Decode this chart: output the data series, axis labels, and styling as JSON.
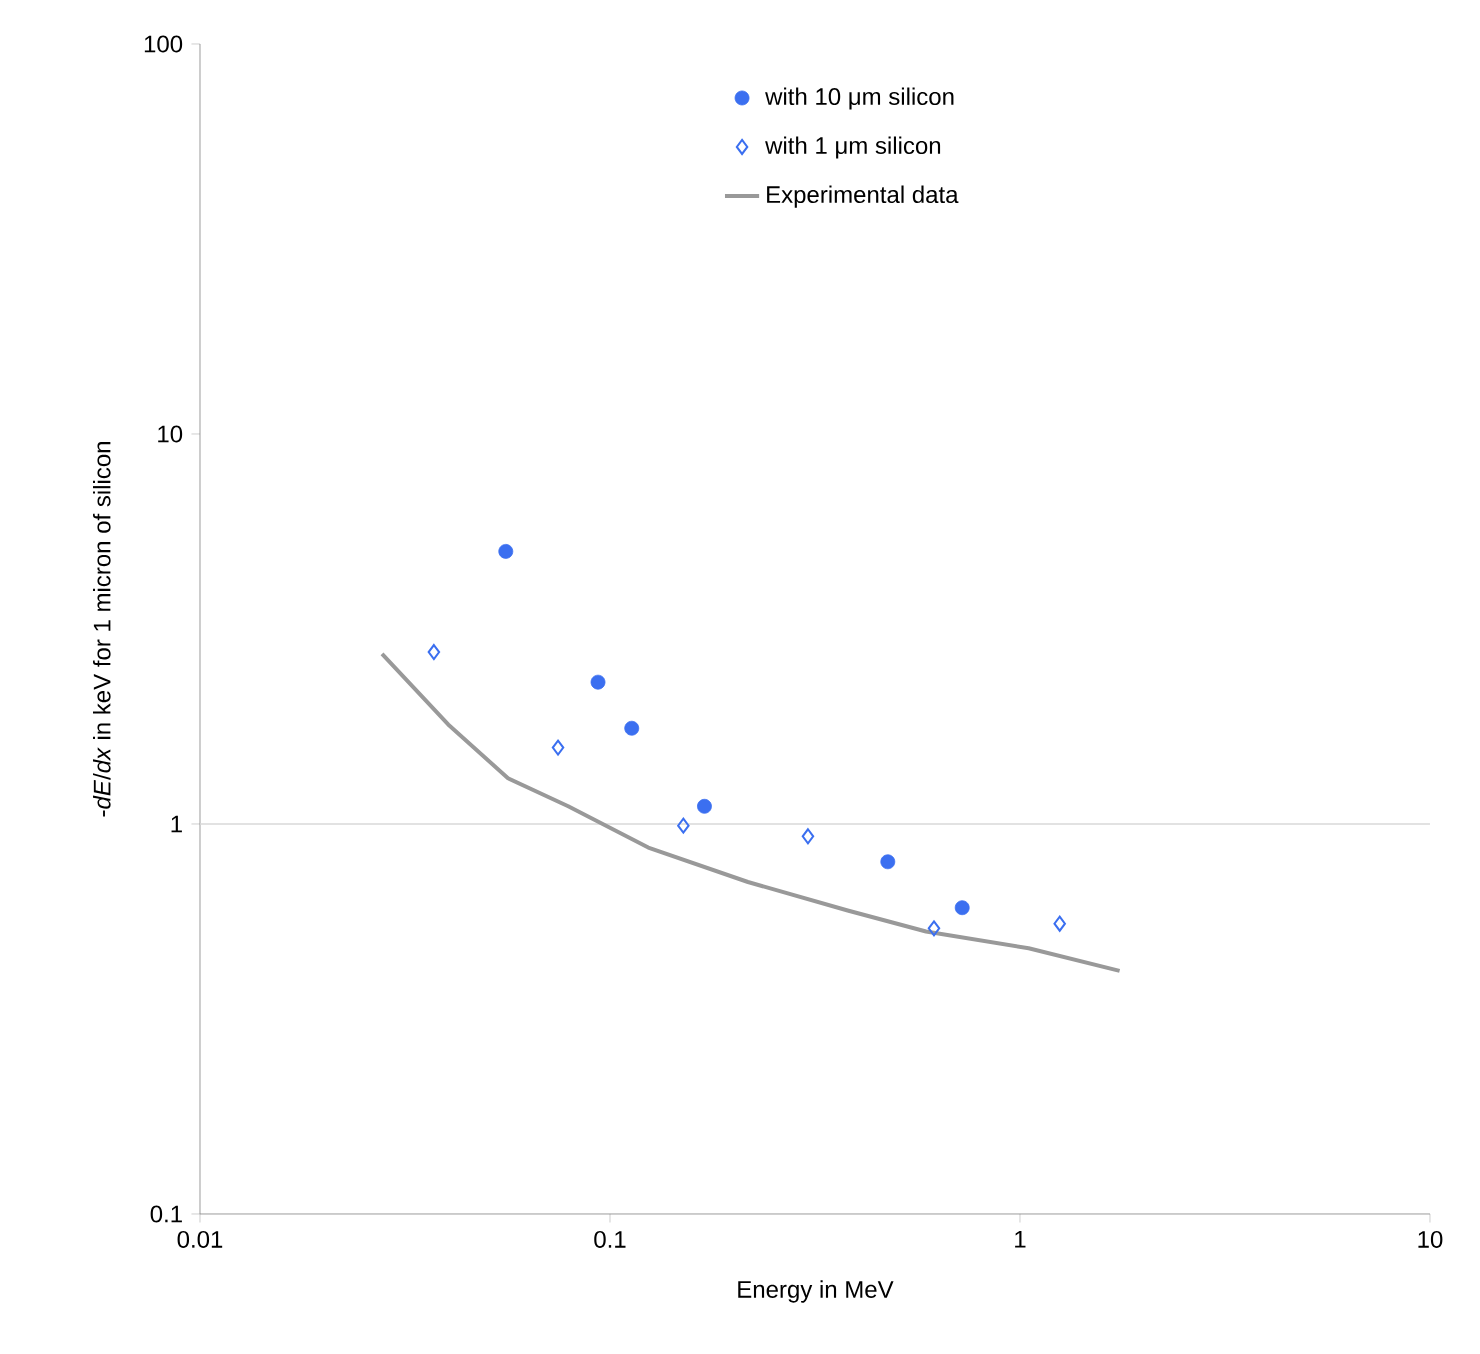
{
  "chart_data": {
    "type": "scatter",
    "xlabel": "Energy in MeV",
    "ylabel": "-*dE*/*dx* in keV for 1 micron of silicon",
    "log": "xy",
    "xlim": [
      0.01,
      10
    ],
    "xticks": [
      0.01,
      0.1,
      1,
      10
    ],
    "ylim": [
      0.1,
      100
    ],
    "yticks": [
      0.1,
      1,
      10,
      100
    ],
    "legend": "top right",
    "grid": false,
    "ref_lines": [
      {
        "axis": "y",
        "value": 1,
        "color": "#d9d9d9"
      }
    ],
    "series": [
      {
        "name": "with 10 μm silicon",
        "marker": "circle",
        "color": "#3b6ff0",
        "x": [
          0.0557,
          0.0935,
          0.113,
          0.17,
          0.476,
          0.723
        ],
        "values": [
          5.0,
          2.31,
          1.76,
          1.11,
          0.8,
          0.61
        ]
      },
      {
        "name": "with 1 μm silicon",
        "marker": "diamond",
        "color": "#3b6ff0",
        "x": [
          0.0372,
          0.0747,
          0.151,
          0.304,
          0.617,
          1.25
        ],
        "values": [
          2.76,
          1.57,
          0.99,
          0.93,
          0.54,
          0.555
        ]
      },
      {
        "name": "Experimental data",
        "type": "line",
        "marker": "none",
        "color": "#999999",
        "x": [
          0.0278,
          0.0403,
          0.0564,
          0.0791,
          0.124,
          0.217,
          0.38,
          0.59,
          1.05,
          1.75
        ],
        "values": [
          2.73,
          1.8,
          1.31,
          1.11,
          0.87,
          0.71,
          0.6,
          0.53,
          0.48,
          0.42
        ]
      }
    ]
  }
}
